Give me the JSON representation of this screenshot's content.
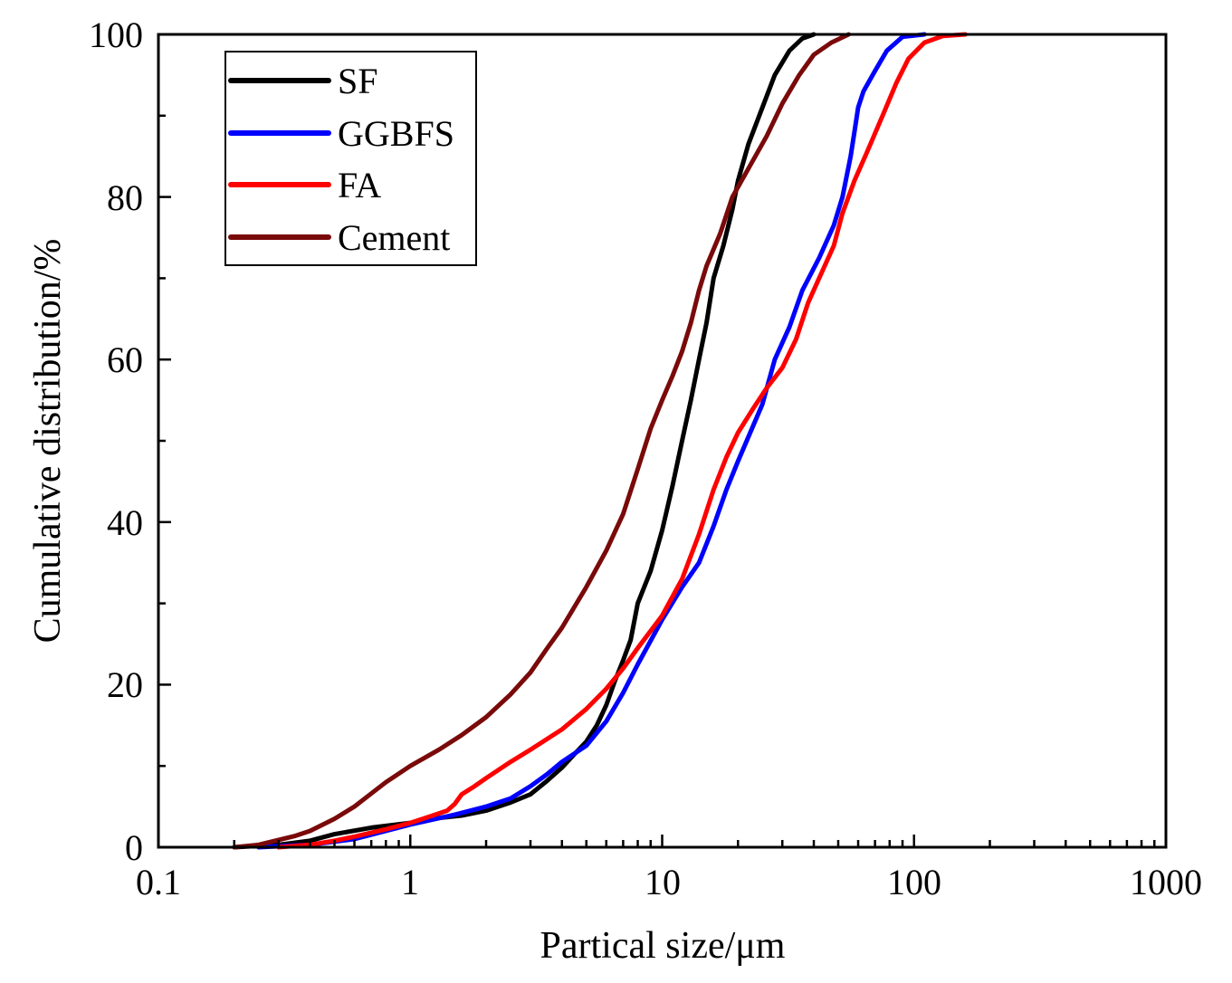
{
  "chart_data": {
    "type": "line",
    "xscale": "log",
    "xlabel": "Partical size/μm",
    "ylabel": "Cumulative distribution/%",
    "xlim": [
      0.1,
      1000
    ],
    "ylim": [
      0,
      100
    ],
    "xticks": [
      0.1,
      1,
      10,
      100,
      1000
    ],
    "xtick_labels": [
      "0.1",
      "1",
      "10",
      "100",
      "1000"
    ],
    "yticks": [
      0,
      20,
      40,
      60,
      80,
      100
    ],
    "ytick_labels": [
      "0",
      "20",
      "40",
      "60",
      "80",
      "100"
    ],
    "legend_position": "top-left",
    "series": [
      {
        "name": "SF",
        "color": "#000000",
        "points": [
          [
            0.2,
            0
          ],
          [
            0.3,
            0.3
          ],
          [
            0.4,
            0.8
          ],
          [
            0.5,
            1.6
          ],
          [
            0.7,
            2.4
          ],
          [
            1.0,
            3.0
          ],
          [
            1.3,
            3.6
          ],
          [
            1.6,
            3.9
          ],
          [
            2.0,
            4.5
          ],
          [
            2.5,
            5.5
          ],
          [
            3.0,
            6.5
          ],
          [
            3.5,
            8.2
          ],
          [
            4.0,
            9.8
          ],
          [
            4.5,
            11.5
          ],
          [
            5.0,
            13.0
          ],
          [
            5.5,
            15.0
          ],
          [
            6.0,
            17.5
          ],
          [
            6.5,
            20.5
          ],
          [
            7.0,
            23.0
          ],
          [
            7.5,
            25.5
          ],
          [
            8.0,
            30.0
          ],
          [
            9.0,
            34.0
          ],
          [
            10.0,
            39.0
          ],
          [
            11.0,
            44.5
          ],
          [
            12.0,
            50.0
          ],
          [
            13.0,
            55.0
          ],
          [
            14.0,
            60.0
          ],
          [
            15.0,
            64.5
          ],
          [
            16.0,
            70.0
          ],
          [
            17.5,
            74.0
          ],
          [
            19.0,
            78.5
          ],
          [
            20.0,
            82.0
          ],
          [
            22.0,
            86.5
          ],
          [
            25.0,
            91.0
          ],
          [
            28.0,
            95.0
          ],
          [
            32.0,
            98.0
          ],
          [
            36.0,
            99.5
          ],
          [
            40.0,
            100.0
          ]
        ]
      },
      {
        "name": "GGBFS",
        "color": "#0000ff",
        "points": [
          [
            0.25,
            0
          ],
          [
            0.4,
            0.3
          ],
          [
            0.6,
            1.0
          ],
          [
            0.8,
            2.0
          ],
          [
            1.0,
            2.8
          ],
          [
            1.5,
            4.0
          ],
          [
            2.0,
            5.0
          ],
          [
            2.5,
            6.0
          ],
          [
            3.0,
            7.5
          ],
          [
            3.5,
            9.0
          ],
          [
            4.0,
            10.5
          ],
          [
            5.0,
            12.5
          ],
          [
            6.0,
            15.5
          ],
          [
            7.0,
            19.0
          ],
          [
            8.0,
            22.5
          ],
          [
            10.0,
            28.0
          ],
          [
            12.0,
            32.0
          ],
          [
            14.0,
            35.0
          ],
          [
            16.0,
            39.5
          ],
          [
            18.0,
            44.0
          ],
          [
            20.0,
            47.5
          ],
          [
            25.0,
            54.5
          ],
          [
            28.0,
            60.0
          ],
          [
            32.0,
            64.0
          ],
          [
            36.0,
            68.5
          ],
          [
            42.0,
            72.5
          ],
          [
            48.0,
            76.5
          ],
          [
            52.0,
            80.0
          ],
          [
            56.0,
            85.0
          ],
          [
            58.0,
            88.0
          ],
          [
            60.0,
            91.0
          ],
          [
            63.0,
            93.0
          ],
          [
            70.0,
            95.5
          ],
          [
            78.0,
            98.0
          ],
          [
            90.0,
            99.7
          ],
          [
            110.0,
            100.0
          ]
        ]
      },
      {
        "name": "FA",
        "color": "#ff0000",
        "points": [
          [
            0.3,
            0
          ],
          [
            0.4,
            0.3
          ],
          [
            0.5,
            0.8
          ],
          [
            0.6,
            1.3
          ],
          [
            0.8,
            2.2
          ],
          [
            1.0,
            3.0
          ],
          [
            1.2,
            3.8
          ],
          [
            1.4,
            4.5
          ],
          [
            1.5,
            5.3
          ],
          [
            1.6,
            6.5
          ],
          [
            1.8,
            7.5
          ],
          [
            2.0,
            8.5
          ],
          [
            2.5,
            10.5
          ],
          [
            3.0,
            12.0
          ],
          [
            4.0,
            14.5
          ],
          [
            5.0,
            17.0
          ],
          [
            6.0,
            19.5
          ],
          [
            7.0,
            22.0
          ],
          [
            8.0,
            24.5
          ],
          [
            10.0,
            28.5
          ],
          [
            12.0,
            33.0
          ],
          [
            14.0,
            38.5
          ],
          [
            16.0,
            44.0
          ],
          [
            18.0,
            48.0
          ],
          [
            20.0,
            51.0
          ],
          [
            23.0,
            54.0
          ],
          [
            26.0,
            56.5
          ],
          [
            30.0,
            59.0
          ],
          [
            34.0,
            62.5
          ],
          [
            38.0,
            67.0
          ],
          [
            42.0,
            70.0
          ],
          [
            48.0,
            74.0
          ],
          [
            52.0,
            78.0
          ],
          [
            58.0,
            82.0
          ],
          [
            65.0,
            85.5
          ],
          [
            75.0,
            90.0
          ],
          [
            85.0,
            94.0
          ],
          [
            95.0,
            97.0
          ],
          [
            110.0,
            99.0
          ],
          [
            130.0,
            99.8
          ],
          [
            160.0,
            100.0
          ]
        ]
      },
      {
        "name": "Cement",
        "color": "#7a0a0a",
        "points": [
          [
            0.2,
            0
          ],
          [
            0.25,
            0.3
          ],
          [
            0.3,
            0.9
          ],
          [
            0.35,
            1.4
          ],
          [
            0.4,
            2.0
          ],
          [
            0.5,
            3.5
          ],
          [
            0.6,
            5.0
          ],
          [
            0.7,
            6.6
          ],
          [
            0.8,
            8.0
          ],
          [
            1.0,
            10.0
          ],
          [
            1.3,
            12.0
          ],
          [
            1.6,
            13.8
          ],
          [
            2.0,
            16.0
          ],
          [
            2.5,
            18.8
          ],
          [
            3.0,
            21.5
          ],
          [
            3.5,
            24.5
          ],
          [
            4.0,
            27.0
          ],
          [
            5.0,
            32.0
          ],
          [
            6.0,
            36.5
          ],
          [
            7.0,
            41.0
          ],
          [
            8.0,
            46.5
          ],
          [
            9.0,
            51.5
          ],
          [
            10.0,
            55.0
          ],
          [
            11.0,
            58.0
          ],
          [
            12.0,
            61.0
          ],
          [
            13.0,
            64.5
          ],
          [
            14.0,
            68.5
          ],
          [
            15.0,
            71.5
          ],
          [
            17.0,
            75.5
          ],
          [
            19.0,
            80.0
          ],
          [
            22.0,
            83.5
          ],
          [
            26.0,
            87.5
          ],
          [
            30.0,
            91.5
          ],
          [
            35.0,
            95.0
          ],
          [
            40.0,
            97.5
          ],
          [
            47.0,
            99.0
          ],
          [
            55.0,
            100.0
          ]
        ]
      }
    ]
  }
}
